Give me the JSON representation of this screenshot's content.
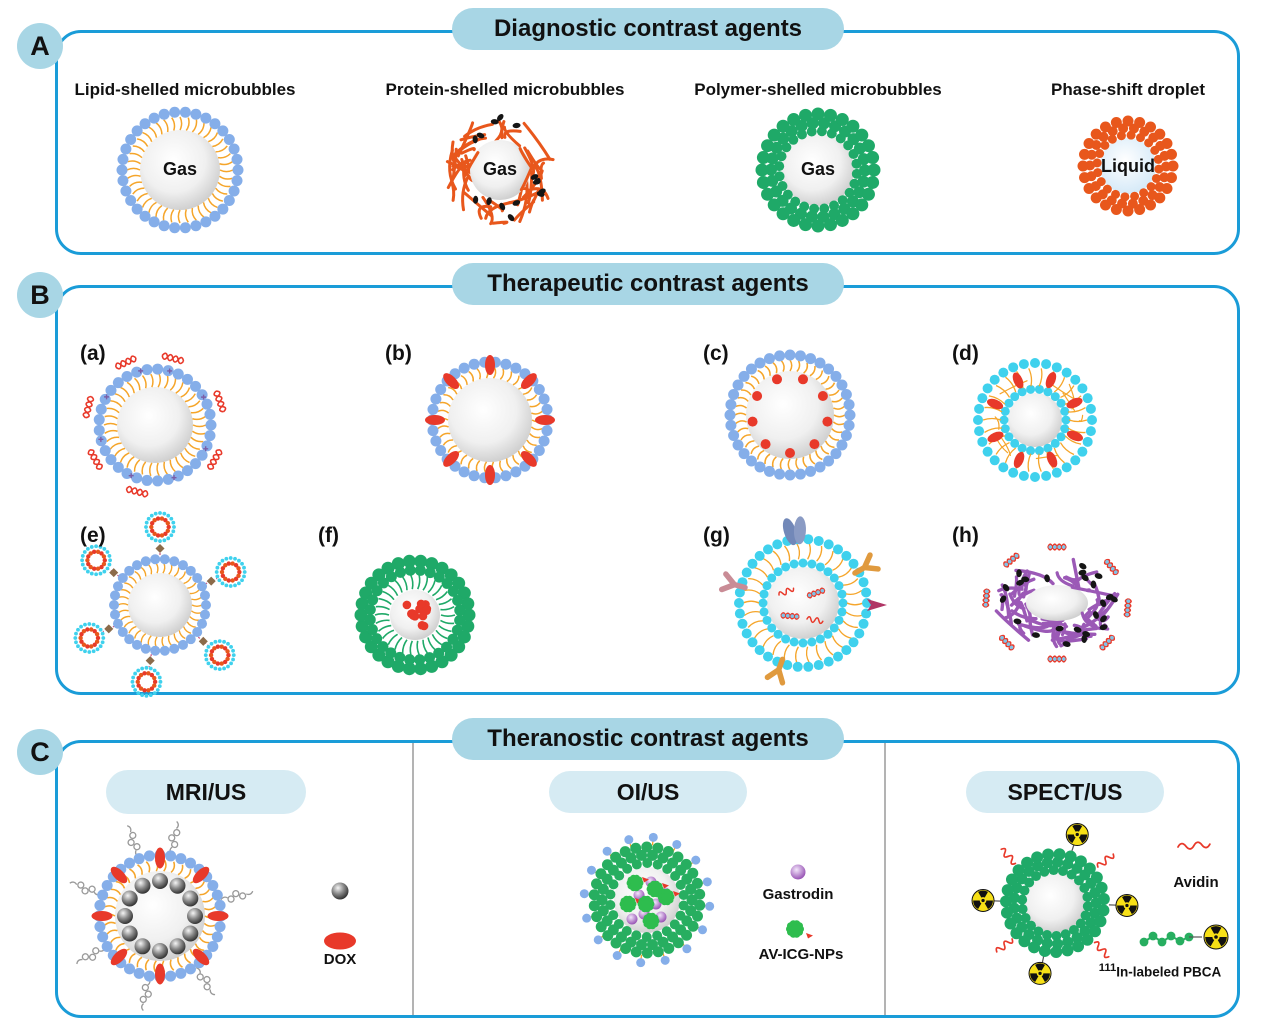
{
  "panels": {
    "a": {
      "letter": "A",
      "title": "Diagnostic contrast agents",
      "items": [
        {
          "label": "Lipid-shelled microbubbles",
          "core_label": "Gas",
          "icon": "lipid-microbubble-icon"
        },
        {
          "label": "Protein-shelled microbubbles",
          "core_label": "Gas",
          "icon": "protein-microbubble-icon"
        },
        {
          "label": "Polymer-shelled microbubbles",
          "core_label": "Gas",
          "icon": "polymer-microbubble-icon"
        },
        {
          "label": "Phase-shift droplet",
          "core_label": "Liquid",
          "icon": "phase-shift-droplet-icon"
        }
      ]
    },
    "b": {
      "letter": "B",
      "title": "Therapeutic contrast agents",
      "items": [
        {
          "label": "(a)",
          "icon": "nucleic-acid-surface-microbubble-icon"
        },
        {
          "label": "(b)",
          "icon": "drug-in-shell-microbubble-icon"
        },
        {
          "label": "(c)",
          "icon": "drug-inside-shell-microbubble-icon"
        },
        {
          "label": "(d)",
          "icon": "bilayer-drug-microbubble-icon"
        },
        {
          "label": "(e)",
          "icon": "liposome-loaded-microbubble-icon"
        },
        {
          "label": "(f)",
          "icon": "polymer-drug-core-microbubble-icon"
        },
        {
          "label": "(g)",
          "icon": "antibody-targeted-microbubble-icon"
        },
        {
          "label": "(h)",
          "icon": "polymer-nucleic-acid-microbubble-icon"
        }
      ]
    },
    "c": {
      "letter": "C",
      "title": "Theranostic contrast agents",
      "sections": [
        {
          "title": "MRI/US",
          "legend": [
            {
              "label": "",
              "icon": "iron-oxide-nanoparticle-icon"
            },
            {
              "label": "DOX",
              "icon": "dox-drug-icon"
            }
          ]
        },
        {
          "title": "OI/US",
          "legend": [
            {
              "label": "Gastrodin",
              "icon": "gastrodin-sphere-icon"
            },
            {
              "label": "AV-ICG-NPs",
              "icon": "av-icg-nanoparticle-icon"
            }
          ]
        },
        {
          "title": "SPECT/US",
          "legend": [
            {
              "label": "Avidin",
              "icon": "avidin-strand-icon"
            },
            {
              "sup": "111",
              "label": "In-labeled PBCA",
              "icon": "in111-pbca-chain-icon"
            }
          ]
        }
      ]
    }
  },
  "palette": {
    "border_blue": "#1A9CD8",
    "pill_blue": "#A8D6E5",
    "subpill_blue": "#D6EBF3",
    "lipid_bead": "#85AEE9",
    "lipid_tail": "#F5A52A",
    "protein_orange": "#E8571C",
    "polymer_green": "#1FA968",
    "fluffy_green": "#27AE60",
    "cyan_bead": "#3FD1ED",
    "drug_red": "#E8392A",
    "purple_shell": "#9B59B6",
    "gastrodin_purple": "#8E44AD",
    "icg_green": "#2EBD4E",
    "radioactive_yellow": "#F7E017",
    "antibody_orange": "#E09A3E",
    "antibody_rose": "#C98C96",
    "antibody_magenta": "#B03565",
    "dimer_blue": "#7288B8",
    "polymer_chain_gray": "#999999",
    "divider_gray": "#B3B3B3"
  }
}
